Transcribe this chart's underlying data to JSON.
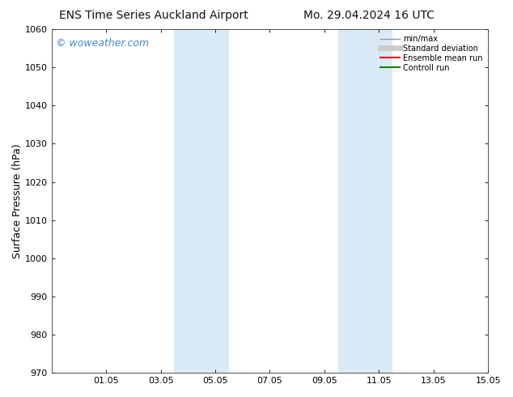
{
  "title_left": "ENS Time Series Auckland Airport",
  "title_right": "Mo. 29.04.2024 16 UTC",
  "ylabel": "Surface Pressure (hPa)",
  "ylim": [
    970,
    1060
  ],
  "yticks": [
    970,
    980,
    990,
    1000,
    1010,
    1020,
    1030,
    1040,
    1050,
    1060
  ],
  "xlim": [
    0,
    16
  ],
  "xtick_labels": [
    "01.05",
    "03.05",
    "05.05",
    "07.05",
    "09.05",
    "11.05",
    "13.05",
    "15.05"
  ],
  "xtick_positions": [
    2,
    4,
    6,
    8,
    10,
    12,
    14,
    16
  ],
  "shaded_regions": [
    {
      "xmin": 4.5,
      "xmax": 6.5
    },
    {
      "xmin": 10.5,
      "xmax": 12.5
    }
  ],
  "shaded_color": "#daeaf7",
  "watermark_text": "© woweather.com",
  "watermark_color": "#4488cc",
  "watermark_fontsize": 9,
  "legend_entries": [
    {
      "label": "min/max",
      "color": "#999999",
      "lw": 1.0
    },
    {
      "label": "Standard deviation",
      "color": "#cccccc",
      "lw": 5
    },
    {
      "label": "Ensemble mean run",
      "color": "#ff0000",
      "lw": 1.5
    },
    {
      "label": "Controll run",
      "color": "#008800",
      "lw": 1.5
    }
  ],
  "background_color": "#ffffff",
  "tick_fontsize": 8,
  "ylabel_fontsize": 9,
  "title_fontsize": 10
}
